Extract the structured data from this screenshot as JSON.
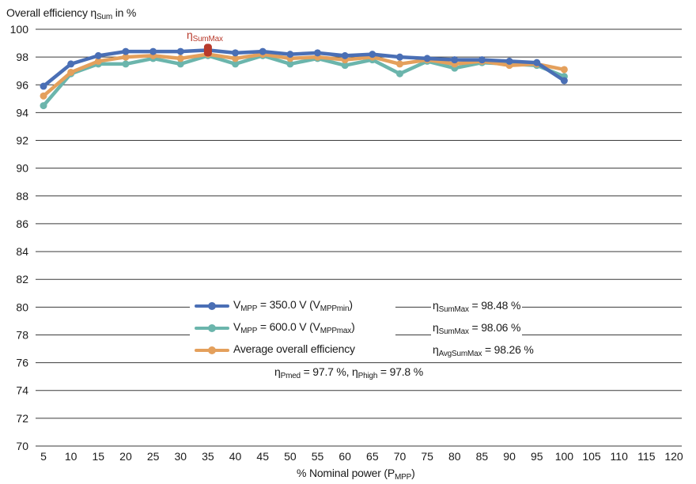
{
  "chart_data": {
    "type": "line",
    "ylabel_main": "Overall efficiency η",
    "ylabel_sub": "Sum",
    "ylabel_suffix": " in %",
    "xlabel_main": "% Nominal power (P",
    "xlabel_sub": "MPP",
    "xlabel_suffix": ")",
    "xlim": [
      5,
      120
    ],
    "ylim": [
      70,
      100
    ],
    "x_ticks": [
      5,
      10,
      15,
      20,
      25,
      30,
      35,
      40,
      45,
      50,
      55,
      60,
      65,
      70,
      75,
      80,
      85,
      90,
      95,
      100,
      105,
      110,
      115,
      120
    ],
    "y_ticks": [
      70,
      72,
      74,
      76,
      78,
      80,
      82,
      84,
      86,
      88,
      90,
      92,
      94,
      96,
      98,
      100
    ],
    "grid": "horizontal",
    "x": [
      5,
      10,
      15,
      20,
      25,
      30,
      35,
      40,
      45,
      50,
      55,
      60,
      65,
      70,
      75,
      80,
      85,
      90,
      95,
      100
    ],
    "series": [
      {
        "name_main": "V",
        "name_sub": "MPP",
        "name_mid": " = 350.0 V (V",
        "name_sub2": "MPPmin",
        "name_end": ")",
        "color": "#4a6fb5",
        "values": [
          95.9,
          97.5,
          98.1,
          98.4,
          98.4,
          98.4,
          98.5,
          98.3,
          98.4,
          98.2,
          98.3,
          98.1,
          98.2,
          98.0,
          97.9,
          97.8,
          97.8,
          97.7,
          97.6,
          96.3
        ]
      },
      {
        "name_main": "V",
        "name_sub": "MPP",
        "name_mid": " = 600.0 V (V",
        "name_sub2": "MPPmax",
        "name_end": ")",
        "color": "#6bb5ac",
        "values": [
          94.5,
          96.8,
          97.5,
          97.5,
          97.9,
          97.5,
          98.1,
          97.5,
          98.1,
          97.5,
          97.9,
          97.4,
          97.8,
          96.8,
          97.7,
          97.2,
          97.6,
          97.5,
          97.4,
          96.6
        ]
      },
      {
        "name_main": "Average overall efficiency",
        "name_sub": "",
        "name_mid": "",
        "name_sub2": "",
        "name_end": "",
        "color": "#e4a05c",
        "values": [
          95.2,
          96.9,
          97.7,
          98.0,
          98.1,
          97.9,
          98.2,
          97.9,
          98.2,
          97.9,
          98.0,
          97.8,
          98.0,
          97.5,
          97.8,
          97.5,
          97.7,
          97.4,
          97.5,
          97.1
        ]
      }
    ],
    "peak_marker": {
      "x": 35,
      "y": 98.5,
      "color": "#b83a2c",
      "label_main": "η",
      "label_sub": "SumMax"
    },
    "annotations": [
      {
        "main": "η",
        "sub": "SumMax",
        "rest": " = 98.48 %"
      },
      {
        "main": "η",
        "sub": "SumMax",
        "rest": " = 98.06 %"
      },
      {
        "main": "η",
        "sub": "AvgSumMax",
        "rest": " = 98.26 %"
      }
    ],
    "bottom_note": {
      "a_main": "η",
      "a_sub": "Pmed",
      "a_rest": " = 97.7 %, ",
      "b_main": "η",
      "b_sub": "Phigh",
      "b_rest": " = 97.8 %"
    }
  }
}
